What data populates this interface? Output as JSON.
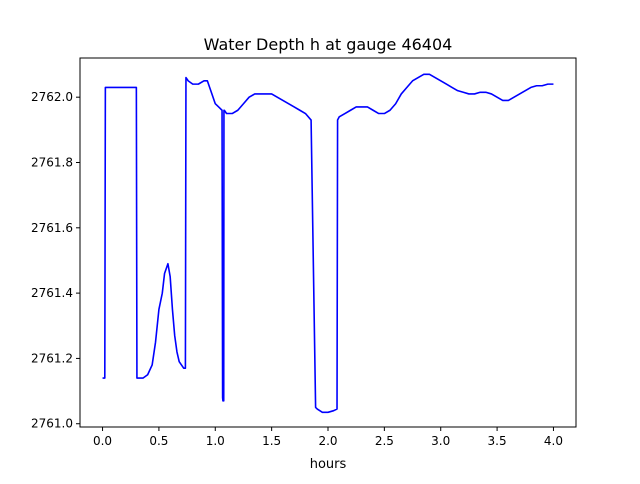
{
  "chart_data": {
    "type": "line",
    "title": "Water Depth h at gauge 46404",
    "xlabel": "hours",
    "ylabel": "",
    "xlim": [
      -0.2,
      4.2
    ],
    "ylim": [
      2760.99,
      2762.12
    ],
    "x_ticks": [
      0.0,
      0.5,
      1.0,
      1.5,
      2.0,
      2.5,
      3.0,
      3.5,
      4.0
    ],
    "x_tick_labels": [
      "0.0",
      "0.5",
      "1.0",
      "1.5",
      "2.0",
      "2.5",
      "3.0",
      "3.5",
      "4.0"
    ],
    "y_ticks": [
      2761.0,
      2761.2,
      2761.4,
      2761.6,
      2761.8,
      2762.0
    ],
    "y_tick_labels": [
      "2761.0",
      "2761.2",
      "2761.4",
      "2761.6",
      "2761.8",
      "2762.0"
    ],
    "grid": false,
    "legend": "none",
    "series": [
      {
        "color": "#0000ff",
        "x": [
          0.0,
          0.02,
          0.025,
          0.05,
          0.1,
          0.2,
          0.3,
          0.305,
          0.32,
          0.36,
          0.4,
          0.44,
          0.47,
          0.5,
          0.53,
          0.55,
          0.58,
          0.6,
          0.62,
          0.64,
          0.66,
          0.68,
          0.7,
          0.72,
          0.735,
          0.74,
          0.76,
          0.8,
          0.85,
          0.9,
          0.93,
          0.96,
          1.0,
          1.03,
          1.06,
          1.065,
          1.068,
          1.075,
          1.077,
          1.08,
          1.1,
          1.15,
          1.2,
          1.25,
          1.3,
          1.35,
          1.4,
          1.45,
          1.5,
          1.55,
          1.6,
          1.65,
          1.7,
          1.75,
          1.8,
          1.85,
          1.89,
          1.905,
          1.95,
          2.0,
          2.05,
          2.08,
          2.085,
          2.1,
          2.15,
          2.2,
          2.25,
          2.3,
          2.35,
          2.4,
          2.45,
          2.5,
          2.55,
          2.6,
          2.65,
          2.7,
          2.75,
          2.8,
          2.85,
          2.9,
          2.95,
          3.0,
          3.05,
          3.1,
          3.15,
          3.2,
          3.25,
          3.3,
          3.35,
          3.4,
          3.45,
          3.5,
          3.55,
          3.6,
          3.65,
          3.7,
          3.75,
          3.8,
          3.85,
          3.9,
          3.95,
          4.0
        ],
        "y": [
          2761.14,
          2761.14,
          2762.03,
          2762.03,
          2762.03,
          2762.03,
          2762.03,
          2761.14,
          2761.14,
          2761.14,
          2761.15,
          2761.18,
          2761.25,
          2761.35,
          2761.4,
          2761.46,
          2761.49,
          2761.45,
          2761.35,
          2761.27,
          2761.22,
          2761.19,
          2761.18,
          2761.17,
          2761.17,
          2762.06,
          2762.05,
          2762.04,
          2762.04,
          2762.05,
          2762.05,
          2762.02,
          2761.98,
          2761.97,
          2761.96,
          2761.08,
          2761.07,
          2761.07,
          2761.96,
          2761.96,
          2761.95,
          2761.95,
          2761.96,
          2761.98,
          2762.0,
          2762.01,
          2762.01,
          2762.01,
          2762.01,
          2762.0,
          2761.99,
          2761.98,
          2761.97,
          2761.96,
          2761.95,
          2761.93,
          2761.05,
          2761.045,
          2761.035,
          2761.035,
          2761.04,
          2761.045,
          2761.93,
          2761.94,
          2761.95,
          2761.96,
          2761.97,
          2761.97,
          2761.97,
          2761.96,
          2761.95,
          2761.95,
          2761.96,
          2761.98,
          2762.01,
          2762.03,
          2762.05,
          2762.06,
          2762.07,
          2762.07,
          2762.06,
          2762.05,
          2762.04,
          2762.03,
          2762.02,
          2762.015,
          2762.01,
          2762.01,
          2762.015,
          2762.015,
          2762.01,
          2762.0,
          2761.99,
          2761.99,
          2762.0,
          2762.01,
          2762.02,
          2762.03,
          2762.035,
          2762.035,
          2762.04,
          2762.04
        ]
      }
    ]
  }
}
